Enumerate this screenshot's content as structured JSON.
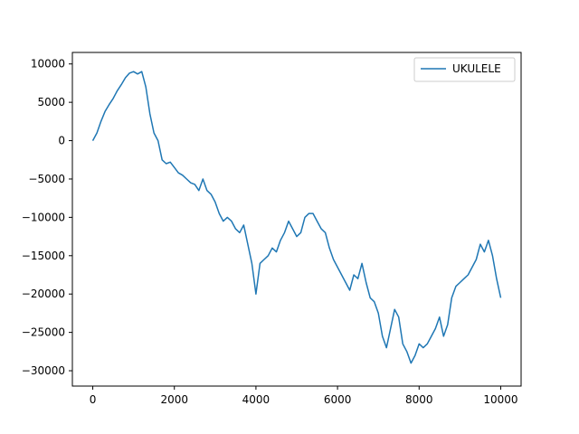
{
  "chart_data": {
    "type": "line",
    "title": "",
    "xlabel": "",
    "ylabel": "",
    "xlim": [
      -500,
      10500
    ],
    "ylim": [
      -32000,
      11500
    ],
    "xticks": [
      0,
      2000,
      4000,
      6000,
      8000,
      10000
    ],
    "xtick_labels": [
      "0",
      "2000",
      "4000",
      "6000",
      "8000",
      "10000"
    ],
    "yticks": [
      10000,
      5000,
      0,
      -5000,
      -10000,
      -15000,
      -20000,
      -25000,
      -30000
    ],
    "ytick_labels": [
      "10000",
      "5000",
      "0",
      "−5000",
      "−10000",
      "−15000",
      "−20000",
      "−25000",
      "−30000"
    ],
    "grid": false,
    "legend": {
      "position": "top-right",
      "entries": [
        "UKULELE"
      ]
    },
    "series": [
      {
        "name": "UKULELE",
        "color": "#1f77b4",
        "x": [
          0,
          100,
          200,
          300,
          400,
          500,
          600,
          700,
          800,
          900,
          1000,
          1100,
          1200,
          1300,
          1400,
          1500,
          1600,
          1700,
          1800,
          1900,
          2000,
          2100,
          2200,
          2300,
          2400,
          2500,
          2600,
          2700,
          2800,
          2900,
          3000,
          3100,
          3200,
          3300,
          3400,
          3500,
          3600,
          3700,
          3800,
          3900,
          4000,
          4100,
          4200,
          4300,
          4400,
          4500,
          4600,
          4700,
          4800,
          4900,
          5000,
          5100,
          5200,
          5300,
          5400,
          5500,
          5600,
          5700,
          5800,
          5900,
          6000,
          6100,
          6200,
          6300,
          6400,
          6500,
          6600,
          6700,
          6800,
          6900,
          7000,
          7100,
          7200,
          7300,
          7400,
          7500,
          7600,
          7700,
          7800,
          7900,
          8000,
          8100,
          8200,
          8300,
          8400,
          8500,
          8600,
          8700,
          8800,
          8900,
          9000,
          9100,
          9200,
          9300,
          9400,
          9500,
          9600,
          9700,
          9800,
          9900,
          10000
        ],
        "y": [
          0,
          1000,
          2500,
          3800,
          4700,
          5500,
          6500,
          7300,
          8200,
          8800,
          9000,
          8700,
          9000,
          7000,
          3500,
          1000,
          0,
          -2500,
          -3000,
          -2800,
          -3500,
          -4200,
          -4500,
          -5000,
          -5500,
          -5700,
          -6500,
          -5000,
          -6500,
          -7000,
          -8000,
          -9500,
          -10500,
          -10000,
          -10500,
          -11500,
          -12000,
          -11000,
          -13500,
          -16000,
          -20000,
          -16000,
          -15500,
          -15000,
          -14000,
          -14500,
          -13000,
          -12000,
          -10500,
          -11500,
          -12500,
          -12000,
          -10000,
          -9500,
          -9500,
          -10500,
          -11500,
          -12000,
          -14000,
          -15500,
          -16500,
          -17500,
          -18500,
          -19500,
          -17500,
          -18000,
          -16000,
          -18500,
          -20500,
          -21000,
          -22500,
          -25500,
          -27000,
          -24500,
          -22000,
          -23000,
          -26500,
          -27500,
          -29000,
          -28000,
          -26500,
          -27000,
          -26500,
          -25500,
          -24500,
          -23000,
          -25500,
          -24000,
          -20500,
          -19000,
          -18500,
          -18000,
          -17500,
          -16500,
          -15500,
          -13500,
          -14500,
          -13000,
          -15000,
          -18000,
          -20500
        ]
      }
    ]
  }
}
